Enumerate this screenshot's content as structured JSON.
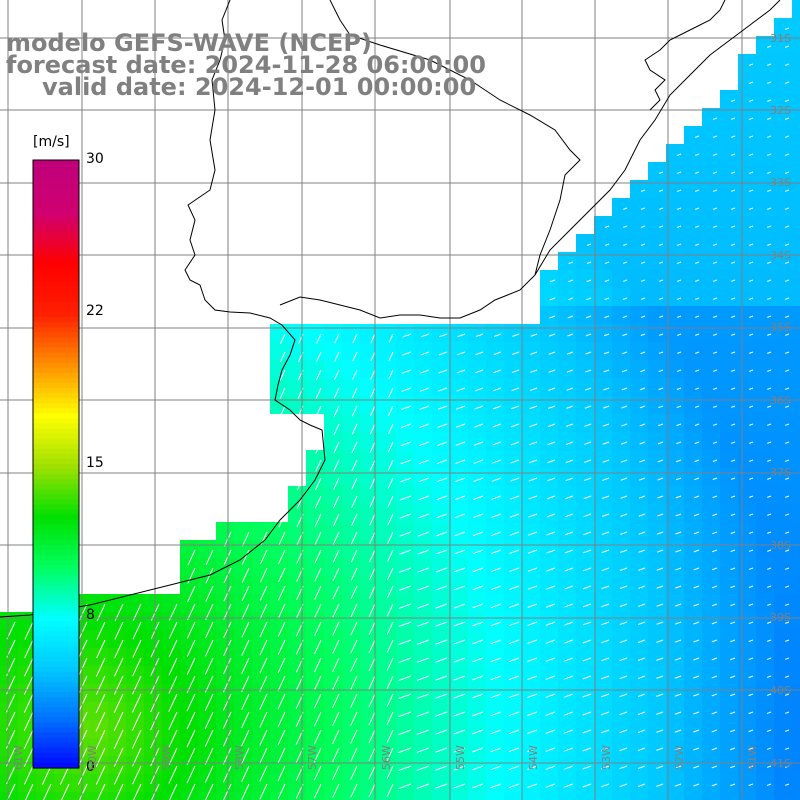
{
  "titles": {
    "line1": "modelo GEFS-WAVE (NCEP)",
    "line2": "forecast date: 2024-11-28 06:00:00",
    "line3": "valid date: 2024-12-01 00:00:00"
  },
  "colorbar": {
    "unit": "[m/s]",
    "ticks": [
      "30",
      "22",
      "15",
      "8",
      "0"
    ],
    "tick_values": [
      30,
      22,
      15,
      8,
      0
    ],
    "stops": [
      "#0000ff",
      "#0070ff",
      "#00c8ff",
      "#00ffff",
      "#00ff60",
      "#00e000",
      "#a0e000",
      "#ffff00",
      "#ff9000",
      "#ff2000",
      "#ff0000",
      "#d00070",
      "#c0007a"
    ]
  },
  "lat_labels": [
    "31S",
    "32S",
    "33S",
    "34S",
    "35S",
    "36S",
    "37S",
    "38S",
    "39S",
    "40S",
    "41S"
  ],
  "lon_labels": [
    "61W",
    "60W",
    "59W",
    "58W",
    "57W",
    "56W",
    "55W",
    "54W",
    "53W",
    "52W",
    "51W"
  ],
  "map": {
    "variable": "wind speed",
    "land_color": "#ffffff",
    "coast_color": "#000000",
    "grid_color": "#808080"
  }
}
